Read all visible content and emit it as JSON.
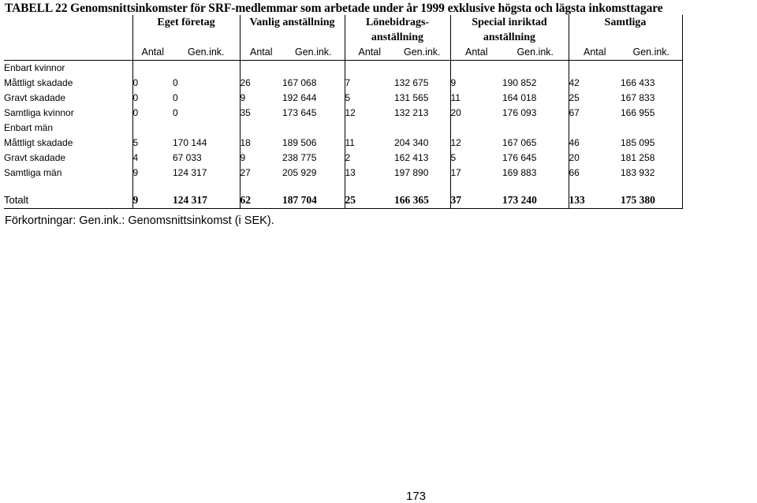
{
  "title": "TABELL 22 Genomsnittsinkomster för SRF-medlemmar som arbetade under år 1999 exklusive högsta och lägsta inkomsttagare",
  "groups": [
    {
      "line1": "Eget företag",
      "line2": ""
    },
    {
      "line1": "Vanlig anställning",
      "line2": ""
    },
    {
      "line1": "Lönebidrags-",
      "line2": "anställning"
    },
    {
      "line1": "Special inriktad",
      "line2": "anställning"
    },
    {
      "line1": "Samtliga",
      "line2": ""
    }
  ],
  "sub": {
    "count": "Antal",
    "avg": "Gen.ink."
  },
  "sections": [
    {
      "label": "Enbart kvinnor",
      "rows": [
        {
          "label": "Måttligt skadade",
          "cells": [
            "0",
            "0",
            "26",
            "167 068",
            "7",
            "132 675",
            "9",
            "190 852",
            "42",
            "166 433"
          ]
        },
        {
          "label": "Gravt skadade",
          "cells": [
            "0",
            "0",
            "9",
            "192 644",
            "5",
            "131 565",
            "11",
            "164 018",
            "25",
            "167 833"
          ]
        },
        {
          "label": "Samtliga kvinnor",
          "cells": [
            "0",
            "0",
            "35",
            "173 645",
            "12",
            "132 213",
            "20",
            "176 093",
            "67",
            "166 955"
          ]
        }
      ]
    },
    {
      "label": "Enbart män",
      "rows": [
        {
          "label": "Måttligt skadade",
          "cells": [
            "5",
            "170 144",
            "18",
            "189 506",
            "11",
            "204 340",
            "12",
            "167 065",
            "46",
            "185 095"
          ]
        },
        {
          "label": "Gravt skadade",
          "cells": [
            "4",
            "67 033",
            "9",
            "238 775",
            "2",
            "162 413",
            "5",
            "176 645",
            "20",
            "181 258"
          ]
        },
        {
          "label": "Samtliga män",
          "cells": [
            "9",
            "124 317",
            "27",
            "205 929",
            "13",
            "197 890",
            "17",
            "169 883",
            "66",
            "183 932"
          ]
        }
      ]
    }
  ],
  "total": {
    "label": "Totalt",
    "cells": [
      "9",
      "124 317",
      "62",
      "187 704",
      "25",
      "166 365",
      "37",
      "173 240",
      "133",
      "175 380"
    ]
  },
  "note": "Förkortningar: Gen.ink.: Genomsnittsinkomst (i SEK).",
  "page_number": "173"
}
